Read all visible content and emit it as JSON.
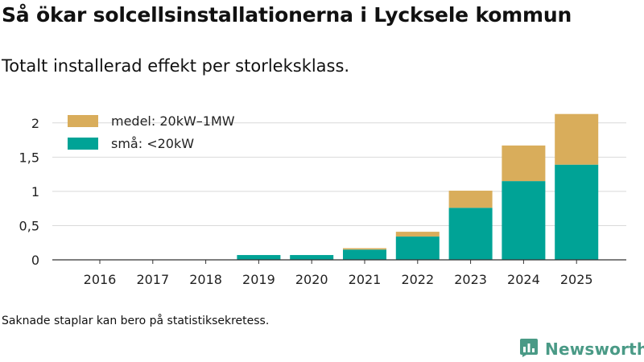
{
  "title": "Så ökar solcellsinstallationerna i Lycksele kommun",
  "subtitle": "Totalt installerad effekt per storleksklass.",
  "footnote": "Saknade staplar kan bero på statistiksekretess.",
  "brand": {
    "name": "Newsworthy",
    "icon": "bar-chart-speech-icon",
    "color": "#4a9a86"
  },
  "colors": {
    "small": "#00a396",
    "medium": "#d9ad5b",
    "grid": "#d9d9d9",
    "axis": "#333333"
  },
  "chart_data": {
    "type": "bar",
    "stacked": true,
    "categories": [
      "2016",
      "2017",
      "2018",
      "2019",
      "2020",
      "2021",
      "2022",
      "2023",
      "2024",
      "2025"
    ],
    "series": [
      {
        "name": "små: <20kW",
        "key": "small",
        "values": [
          0,
          0,
          0,
          0.07,
          0.07,
          0.15,
          0.34,
          0.76,
          1.15,
          1.39
        ]
      },
      {
        "name": "medel: 20kW–1MW",
        "key": "medium",
        "values": [
          0,
          0,
          0,
          0,
          0,
          0.02,
          0.07,
          0.25,
          0.52,
          0.74
        ]
      }
    ],
    "yticks": [
      {
        "value": 0,
        "label": "0"
      },
      {
        "value": 0.5,
        "label": "0,5"
      },
      {
        "value": 1,
        "label": "1"
      },
      {
        "value": 1.5,
        "label": "1,5"
      },
      {
        "value": 2,
        "label": "2"
      }
    ],
    "ylim": [
      0,
      2.15
    ],
    "legend_position": "top-left",
    "grid": true,
    "xlabel": "",
    "ylabel": ""
  }
}
